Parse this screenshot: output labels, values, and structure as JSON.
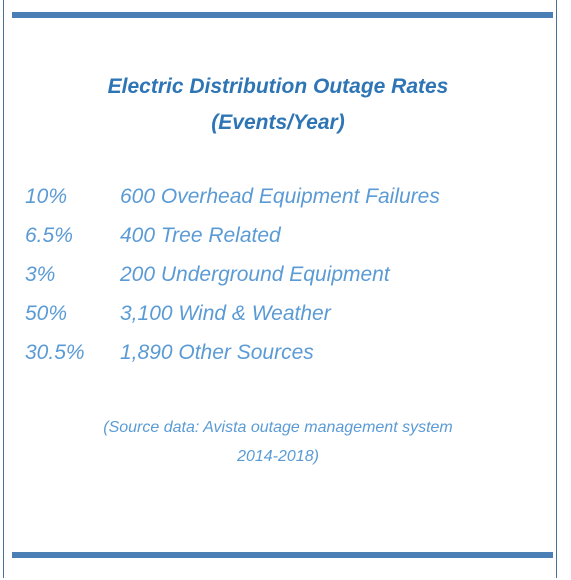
{
  "title": [
    "Electric Distribution Outage Rates",
    "(Events/Year)"
  ],
  "rows": [
    [
      "10%",
      "600 Overhead Equipment Failures"
    ],
    [
      "6.5%",
      "400 Tree Related"
    ],
    [
      "3%",
      "200 Underground Equipment"
    ],
    [
      "50%",
      "3,100 Wind & Weather"
    ],
    [
      "30.5%",
      "1,890 Other Sources"
    ]
  ],
  "source": [
    "(Source data: Avista outage management system",
    "2014-2018)"
  ]
}
